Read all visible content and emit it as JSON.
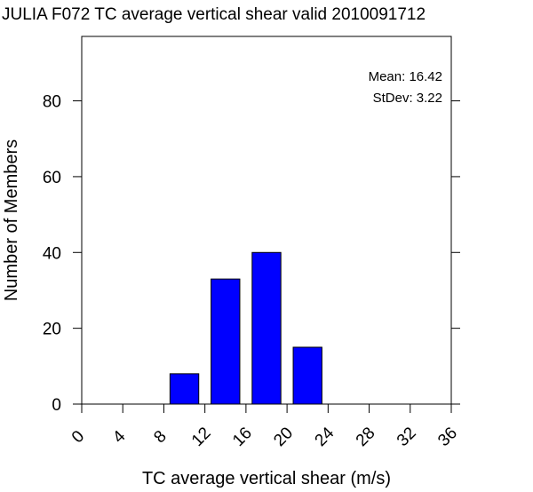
{
  "chart_data": {
    "type": "bar",
    "title": "JULIA F072 TC average vertical shear valid 2010091712",
    "xlabel": "TC average vertical shear (m/s)",
    "ylabel": "Number of Members",
    "xlim": [
      0,
      36
    ],
    "ylim": [
      0,
      97
    ],
    "x_ticks": [
      "0",
      "4",
      "8",
      "12",
      "16",
      "20",
      "24",
      "28",
      "32",
      "36"
    ],
    "y_ticks": [
      "0",
      "20",
      "40",
      "60",
      "80"
    ],
    "bin_width": 4,
    "bins": [
      {
        "bin": [
          8,
          12
        ],
        "value": 8
      },
      {
        "bin": [
          12,
          16
        ],
        "value": 33
      },
      {
        "bin": [
          16,
          20
        ],
        "value": 40
      },
      {
        "bin": [
          20,
          24
        ],
        "value": 15
      }
    ],
    "bar_color": "#0000ff",
    "grid": false,
    "annotations": {
      "mean": "Mean: 16.42",
      "stdev": "StDev: 3.22"
    }
  }
}
